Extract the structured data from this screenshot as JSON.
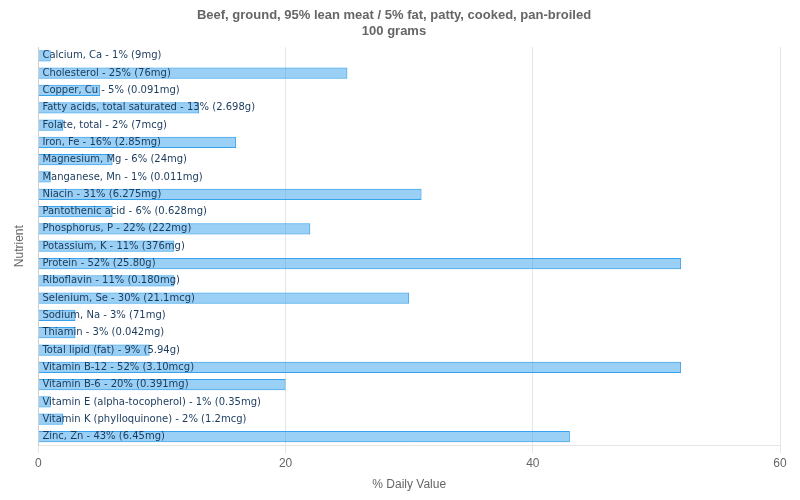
{
  "chart_data": {
    "type": "bar",
    "orientation": "horizontal",
    "title": "Beef, ground, 95% lean meat / 5% fat, patty, cooked, pan-broiled\n100 grams",
    "xlabel": "% Daily Value",
    "ylabel": "Nutrient",
    "categories": [
      "Calcium, Ca - 1% (9mg)",
      "Cholesterol - 25% (76mg)",
      "Copper, Cu - 5% (0.091mg)",
      "Fatty acids, total saturated - 13% (2.698g)",
      "Folate, total - 2% (7mcg)",
      "Iron, Fe - 16% (2.85mg)",
      "Magnesium, Mg - 6% (24mg)",
      "Manganese, Mn - 1% (0.011mg)",
      "Niacin - 31% (6.275mg)",
      "Pantothenic acid - 6% (0.628mg)",
      "Phosphorus, P - 22% (222mg)",
      "Potassium, K - 11% (376mg)",
      "Protein - 52% (25.80g)",
      "Riboflavin - 11% (0.180mg)",
      "Selenium, Se - 30% (21.1mcg)",
      "Sodium, Na - 3% (71mg)",
      "Thiamin - 3% (0.042mg)",
      "Total lipid (fat) - 9% (5.94g)",
      "Vitamin B-12 - 52% (3.10mcg)",
      "Vitamin B-6 - 20% (0.391mg)",
      "Vitamin E (alpha-tocopherol) - 1% (0.35mg)",
      "Vitamin K (phylloquinone) - 2% (1.2mcg)",
      "Zinc, Zn - 43% (6.45mg)"
    ],
    "values": [
      1,
      25,
      5,
      13,
      2,
      16,
      6,
      1,
      31,
      6,
      22,
      11,
      52,
      11,
      30,
      3,
      3,
      9,
      52,
      20,
      1,
      2,
      43
    ],
    "xlim": [
      0,
      60
    ],
    "xticks": [
      0,
      20,
      40,
      60
    ],
    "grid": true,
    "tick_labels": "x"
  }
}
